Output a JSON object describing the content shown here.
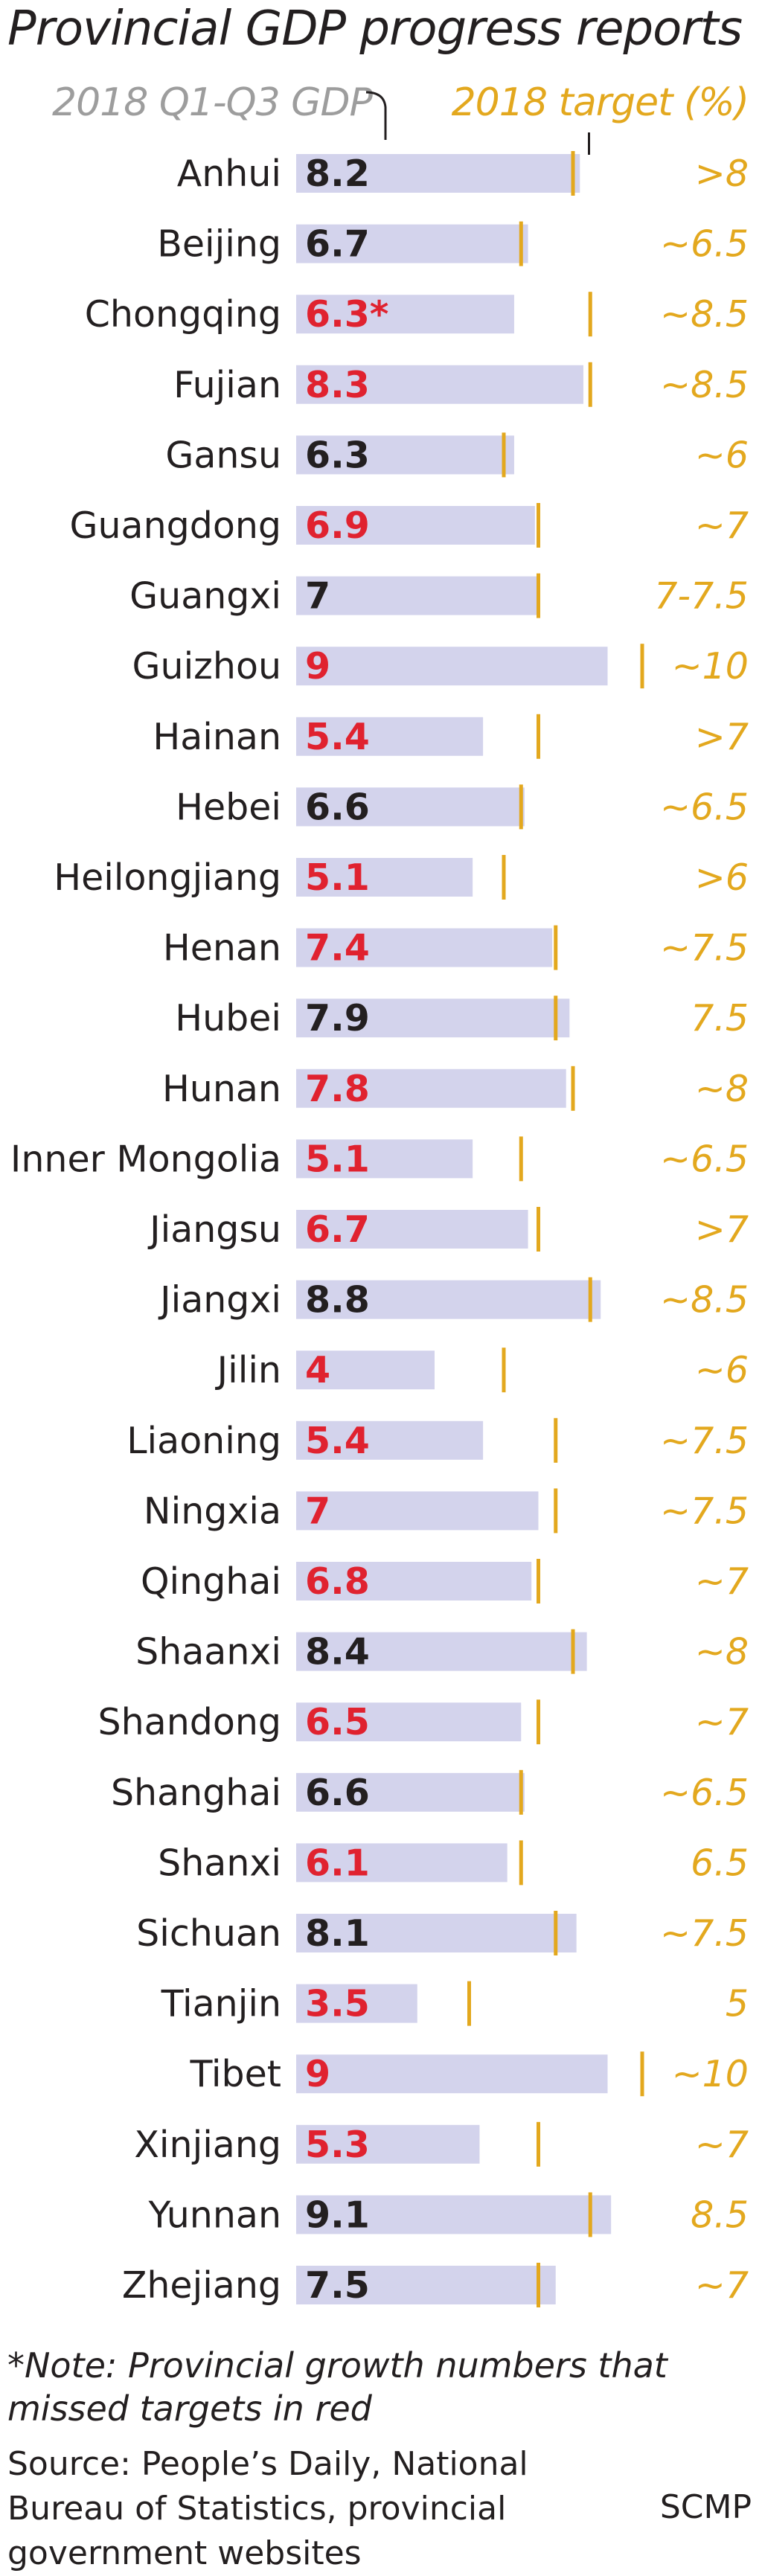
{
  "title": "Provincial GDP progress reports",
  "header": {
    "gdp_label": "2018 Q1-Q3 GDP",
    "target_label": "2018 target (%)"
  },
  "note": "*Note: Provincial growth numbers that missed targets in red",
  "source": "Source: People’s Daily, National Bureau of Statistics, provincial government websites",
  "brand": "SCMP",
  "colors": {
    "bar": "#d3d3ec",
    "target_marker": "#e3a81e",
    "missed": "#e0222f",
    "met": "#231f20",
    "gdp_header": "#9d9d9d"
  },
  "chart_data": {
    "type": "bar",
    "orientation": "horizontal",
    "categories": [
      "Anhui",
      "Beijing",
      "Chongqing",
      "Fujian",
      "Gansu",
      "Guangdong",
      "Guangxi",
      "Guizhou",
      "Hainan",
      "Hebei",
      "Heilongjiang",
      "Henan",
      "Hubei",
      "Hunan",
      "Inner Mongolia",
      "Jiangsu",
      "Jiangxi",
      "Jilin",
      "Liaoning",
      "Ningxia",
      "Qinghai",
      "Shaanxi",
      "Shandong",
      "Shanghai",
      "Shanxi",
      "Sichuan",
      "Tianjin",
      "Tibet",
      "Xinjiang",
      "Yunnan",
      "Zhejiang"
    ],
    "value_labels": [
      "8.2",
      "6.7",
      "6.3*",
      "8.3",
      "6.3",
      "6.9",
      "7",
      "9",
      "5.4",
      "6.6",
      "5.1",
      "7.4",
      "7.9",
      "7.8",
      "5.1",
      "6.7",
      "8.8",
      "4",
      "5.4",
      "7",
      "6.8",
      "8.4",
      "6.5",
      "6.6",
      "6.1",
      "8.1",
      "3.5",
      "9",
      "5.3",
      "9.1",
      "7.5"
    ],
    "values": [
      8.2,
      6.7,
      6.3,
      8.3,
      6.3,
      6.9,
      7,
      9,
      5.4,
      6.6,
      5.1,
      7.4,
      7.9,
      7.8,
      5.1,
      6.7,
      8.8,
      4,
      5.4,
      7,
      6.8,
      8.4,
      6.5,
      6.6,
      6.1,
      8.1,
      3.5,
      9,
      5.3,
      9.1,
      7.5
    ],
    "missed_target": [
      false,
      false,
      true,
      true,
      false,
      true,
      false,
      true,
      true,
      false,
      true,
      true,
      false,
      true,
      true,
      true,
      false,
      true,
      true,
      true,
      true,
      false,
      true,
      false,
      true,
      false,
      true,
      true,
      true,
      false,
      false
    ],
    "target_labels": [
      ">8",
      "~6.5",
      "~8.5",
      "~8.5",
      "~6",
      "~7",
      "7-7.5",
      "~10",
      ">7",
      "~6.5",
      ">6",
      "~7.5",
      "7.5",
      "~8",
      "~6.5",
      ">7",
      "~8.5",
      "~6",
      "~7.5",
      "~7.5",
      "~7",
      "~8",
      "~7",
      "~6.5",
      "6.5",
      "~7.5",
      "5",
      "~10",
      "~7",
      "8.5",
      "~7"
    ],
    "target_values": [
      8,
      6.5,
      8.5,
      8.5,
      6,
      7,
      7,
      10,
      7,
      6.5,
      6,
      7.5,
      7.5,
      8,
      6.5,
      7,
      8.5,
      6,
      7.5,
      7.5,
      7,
      8,
      7,
      6.5,
      6.5,
      7.5,
      5,
      10,
      7,
      8.5,
      7
    ],
    "xlim": [
      0,
      9.3
    ],
    "xlabel": "2018 Q1-Q3 GDP",
    "ylabel": "",
    "legend": "2018 target (%)"
  }
}
